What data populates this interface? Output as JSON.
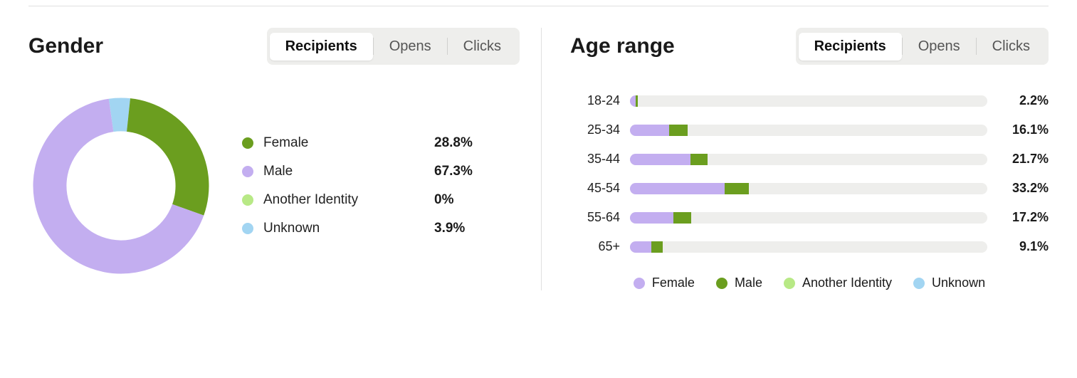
{
  "colors": {
    "female": "#6b9e1f",
    "male": "#c3aef0",
    "another": "#b8e986",
    "unknown": "#a2d5f2",
    "track": "#eeeeec",
    "text": "#1a1a1a"
  },
  "gender": {
    "title": "Gender",
    "tabs": [
      {
        "label": "Recipients",
        "active": true
      },
      {
        "label": "Opens",
        "active": false
      },
      {
        "label": "Clicks",
        "active": false
      }
    ],
    "donut": {
      "type": "donut",
      "inner_radius_ratio": 0.62,
      "slices": [
        {
          "key": "unknown",
          "value": 3.9
        },
        {
          "key": "female",
          "value": 28.8
        },
        {
          "key": "male",
          "value": 67.3
        },
        {
          "key": "another",
          "value": 0
        }
      ],
      "start_angle_deg": -8
    },
    "legend": [
      {
        "key": "female",
        "label": "Female",
        "value": "28.8%"
      },
      {
        "key": "male",
        "label": "Male",
        "value": "67.3%"
      },
      {
        "key": "another",
        "label": "Another Identity",
        "value": "0%"
      },
      {
        "key": "unknown",
        "label": "Unknown",
        "value": "3.9%"
      }
    ]
  },
  "age": {
    "title": "Age range",
    "tabs": [
      {
        "label": "Recipients",
        "active": true
      },
      {
        "label": "Opens",
        "active": false
      },
      {
        "label": "Clicks",
        "active": false
      }
    ],
    "type": "stacked-bar",
    "rows": [
      {
        "label": "18-24",
        "total": "2.2%",
        "segments": [
          {
            "key": "male",
            "pct": 1.6
          },
          {
            "key": "female",
            "pct": 0.6
          }
        ]
      },
      {
        "label": "25-34",
        "total": "16.1%",
        "segments": [
          {
            "key": "male",
            "pct": 11.0
          },
          {
            "key": "female",
            "pct": 5.1
          }
        ]
      },
      {
        "label": "35-44",
        "total": "21.7%",
        "segments": [
          {
            "key": "male",
            "pct": 17.0
          },
          {
            "key": "female",
            "pct": 4.7
          }
        ]
      },
      {
        "label": "45-54",
        "total": "33.2%",
        "segments": [
          {
            "key": "male",
            "pct": 26.5
          },
          {
            "key": "female",
            "pct": 6.7
          }
        ]
      },
      {
        "label": "55-64",
        "total": "17.2%",
        "segments": [
          {
            "key": "male",
            "pct": 12.2
          },
          {
            "key": "female",
            "pct": 5.0
          }
        ]
      },
      {
        "label": "65+",
        "total": "9.1%",
        "segments": [
          {
            "key": "male",
            "pct": 6.0
          },
          {
            "key": "female",
            "pct": 3.1
          }
        ]
      }
    ],
    "legend": [
      {
        "key": "female",
        "label": "Female"
      },
      {
        "key": "male",
        "label": "Male"
      },
      {
        "key": "another",
        "label": "Another Identity"
      },
      {
        "key": "unknown",
        "label": "Unknown"
      }
    ],
    "legend_swatch_colors": {
      "female": "#c3aef0",
      "male": "#6b9e1f",
      "another": "#b8e986",
      "unknown": "#a2d5f2"
    }
  }
}
